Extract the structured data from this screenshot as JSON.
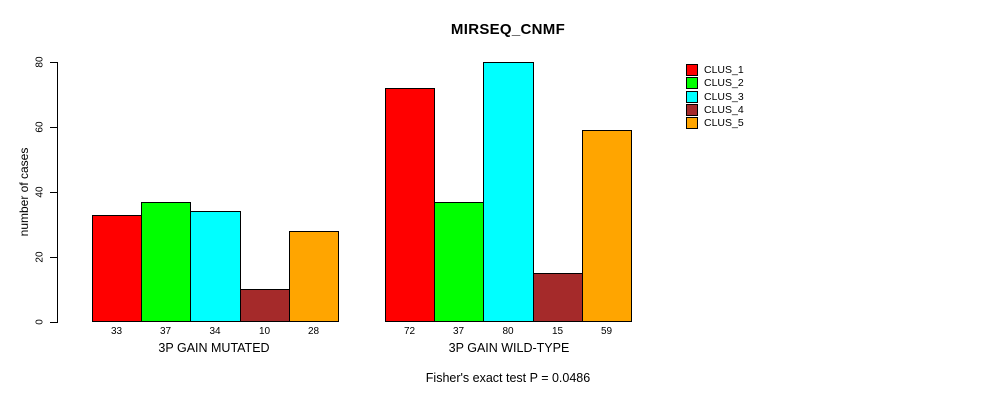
{
  "chart_data": {
    "type": "bar",
    "title": "MIRSEQ_CNMF",
    "ylabel": "number of cases",
    "xlabel": "",
    "ylim": [
      0,
      80
    ],
    "yticks": [
      0,
      20,
      40,
      60,
      80
    ],
    "grid": false,
    "categories": [
      "3P GAIN MUTATED",
      "3P GAIN WILD-TYPE"
    ],
    "series": [
      {
        "name": "CLUS_1",
        "color": "#ff0000",
        "values": [
          33,
          72
        ]
      },
      {
        "name": "CLUS_2",
        "color": "#00ff00",
        "values": [
          37,
          37
        ]
      },
      {
        "name": "CLUS_3",
        "color": "#00ffff",
        "values": [
          34,
          80
        ]
      },
      {
        "name": "CLUS_4",
        "color": "#a52a2a",
        "values": [
          10,
          15
        ]
      },
      {
        "name": "CLUS_5",
        "color": "#ffa500",
        "values": [
          28,
          59
        ]
      }
    ],
    "bar_value_labels_shown": true,
    "legend": {
      "position": "right",
      "entries": [
        "CLUS_1",
        "CLUS_2",
        "CLUS_3",
        "CLUS_4",
        "CLUS_5"
      ]
    },
    "footnote": "Fisher's exact test P = 0.0486",
    "colors": {
      "axis": "#000000",
      "background": "#ffffff",
      "text": "#000000"
    }
  }
}
